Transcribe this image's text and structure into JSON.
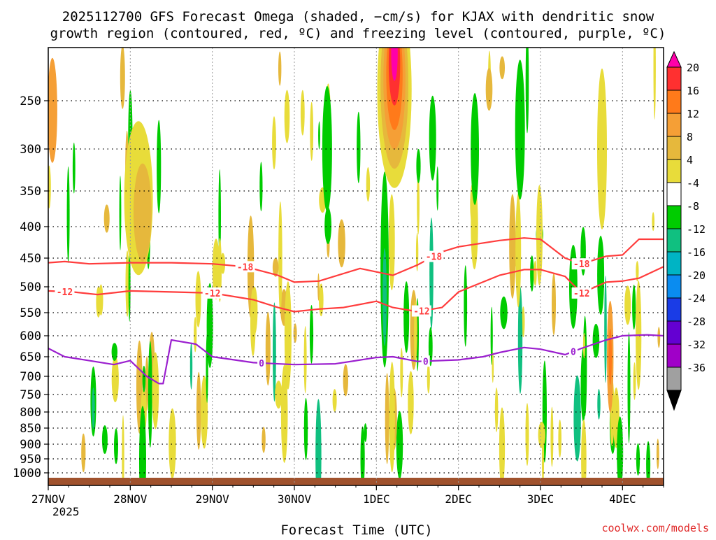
{
  "chart_data": {
    "type": "heatmap",
    "title_line1": "2025112700 GFS Forecast Omega (shaded, −cm/s) for KJAX with dendritic snow",
    "title_line2": "growth region (contoured, red, ºC) and freezing level (contoured, purple, ºC)",
    "xlabel": "Forecast Time (UTC)",
    "x_ticks": [
      "27NOV",
      "28NOV",
      "29NOV",
      "30NOV",
      "1DEC",
      "2DEC",
      "3DEC",
      "4DEC"
    ],
    "x_year": "2025",
    "x_range_days": [
      0,
      7.5
    ],
    "y_ticks": [
      250,
      300,
      350,
      400,
      450,
      500,
      550,
      600,
      650,
      700,
      750,
      800,
      850,
      900,
      950,
      1000
    ],
    "y_range_hpa": [
      200,
      1010
    ],
    "colorbar": {
      "labels": [
        "20",
        "16",
        "12",
        "8",
        "4",
        "-4",
        "-8",
        "-12",
        "-16",
        "-20",
        "-24",
        "-28",
        "-32",
        "-36"
      ],
      "colors": [
        "#ff00aa",
        "#ff3030",
        "#ff7a1a",
        "#f59f36",
        "#e6b83c",
        "#e8dc3a",
        "#ffffff",
        "#00cc00",
        "#10c080",
        "#00b4c4",
        "#0a8cf0",
        "#1a3ce6",
        "#6400d2",
        "#a000c8",
        "#a0a0a0",
        "#000000"
      ]
    },
    "series": [
      {
        "name": "-18",
        "color": "#ff3c3c",
        "label": "-18",
        "x": [
          0,
          0.2,
          0.5,
          1.0,
          1.5,
          2.0,
          2.4,
          2.8,
          3.0,
          3.3,
          3.8,
          4.2,
          4.5,
          4.8,
          5.0,
          5.5,
          5.8,
          6.0,
          6.3,
          6.5,
          6.8,
          7.0,
          7.2,
          7.5
        ],
        "y": [
          458,
          456,
          460,
          458,
          458,
          460,
          465,
          480,
          492,
          490,
          468,
          480,
          462,
          440,
          432,
          422,
          418,
          420,
          450,
          460,
          447,
          445,
          420,
          420
        ],
        "label_positions": [
          2.4,
          4.7,
          6.5
        ]
      },
      {
        "name": "-12",
        "color": "#ff3c3c",
        "label": "-12",
        "x": [
          0,
          0.3,
          0.6,
          1.0,
          1.5,
          2.0,
          2.5,
          2.8,
          3.0,
          3.3,
          3.6,
          4.0,
          4.2,
          4.5,
          4.8,
          5.0,
          5.5,
          5.8,
          6.0,
          6.3,
          6.5,
          6.8,
          7.0,
          7.2,
          7.5
        ],
        "y": [
          508,
          510,
          515,
          508,
          510,
          512,
          525,
          540,
          548,
          543,
          540,
          528,
          540,
          548,
          540,
          510,
          480,
          470,
          470,
          482,
          512,
          492,
          490,
          485,
          465
        ],
        "label_positions": [
          0.2,
          2.0,
          4.55,
          6.5
        ]
      },
      {
        "name": "0",
        "color": "#9b1fcf",
        "label": "0",
        "x": [
          0,
          0.2,
          0.5,
          0.8,
          1.0,
          1.2,
          1.35,
          1.4,
          1.5,
          1.8,
          2.0,
          2.5,
          3.0,
          3.5,
          4.0,
          4.2,
          4.5,
          5.0,
          5.3,
          5.5,
          5.8,
          6.0,
          6.3,
          6.5,
          6.8,
          7.0,
          7.3,
          7.5
        ],
        "y": [
          630,
          650,
          660,
          670,
          660,
          700,
          720,
          720,
          610,
          620,
          650,
          665,
          670,
          668,
          652,
          650,
          662,
          658,
          650,
          640,
          628,
          632,
          645,
          630,
          610,
          600,
          598,
          600
        ],
        "label_positions": [
          2.6,
          4.6,
          6.4
        ]
      }
    ]
  },
  "footer": {
    "credit": "coolwx.com/models"
  }
}
